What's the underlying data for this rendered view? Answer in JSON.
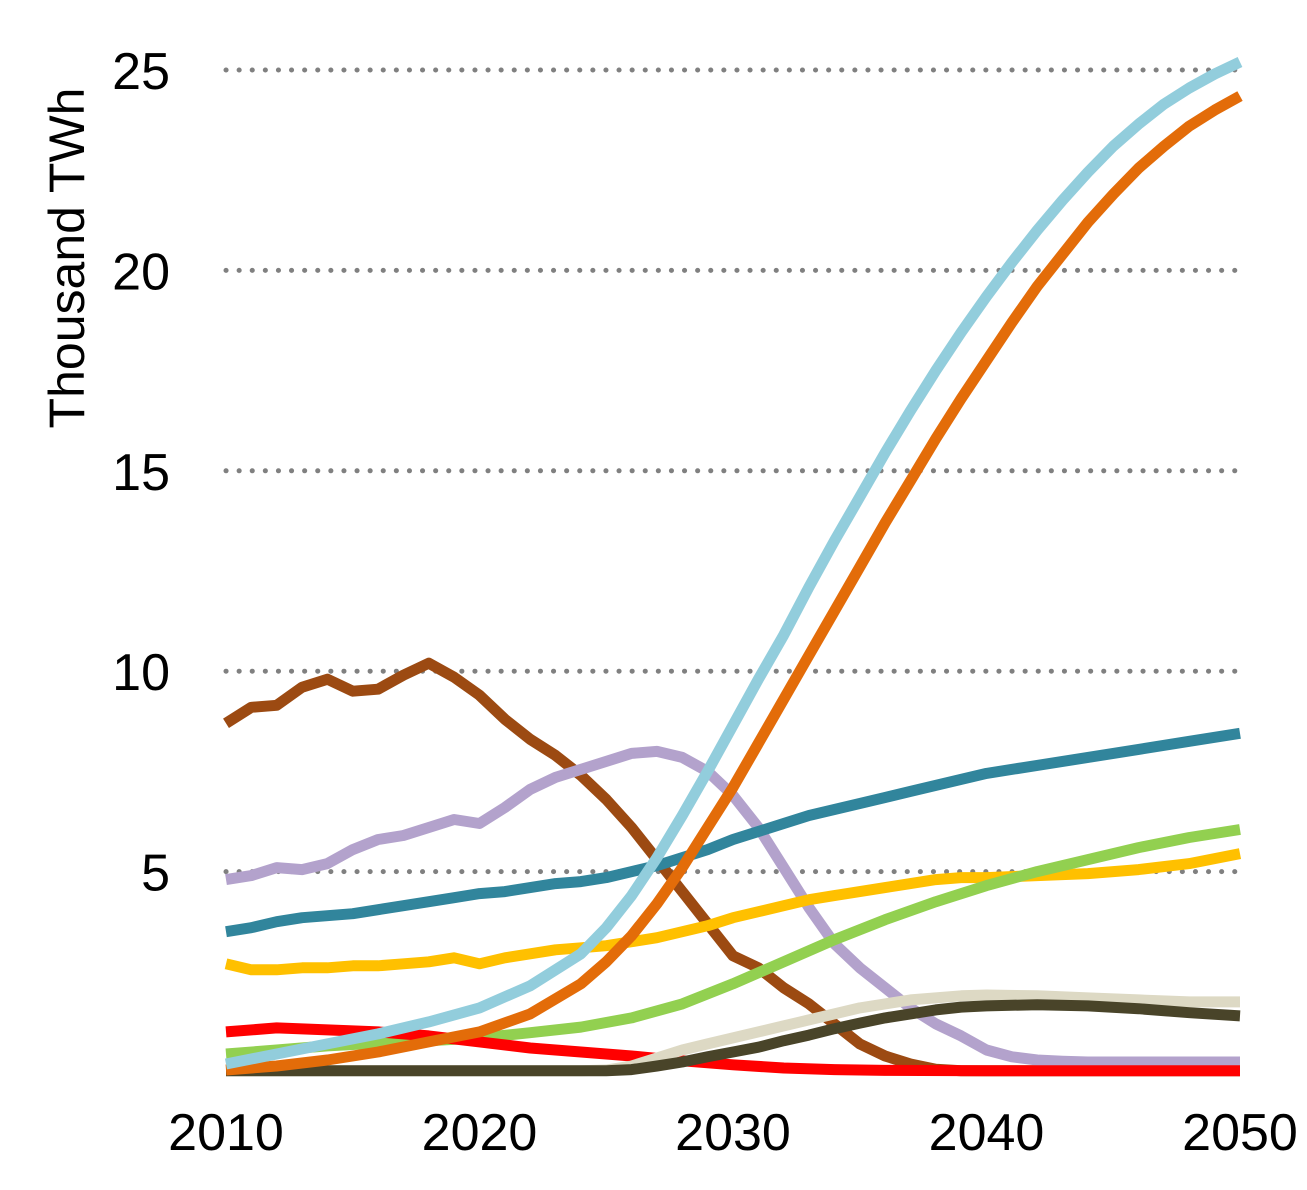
{
  "chart_data": {
    "type": "line",
    "title": "",
    "xlabel": "",
    "ylabel": "Thousand TWh",
    "xlim": [
      2010,
      2050
    ],
    "ylim": [
      0,
      25
    ],
    "xticks": [
      "2010",
      "2020",
      "2030",
      "2040",
      "2050"
    ],
    "yticks": [
      "5",
      "10",
      "15",
      "20",
      "25"
    ],
    "grid": "horizontal dotted",
    "legend": "none",
    "series": [
      {
        "color": "#9C4A12",
        "x": [
          2010,
          2011,
          2012,
          2013,
          2014,
          2015,
          2016,
          2017,
          2018,
          2019,
          2020,
          2021,
          2022,
          2023,
          2024,
          2025,
          2026,
          2027,
          2028,
          2029,
          2030,
          2031,
          2032,
          2033,
          2034,
          2035,
          2036,
          2037,
          2038,
          2039,
          2040,
          2045,
          2050
        ],
        "y": [
          8.7,
          9.1,
          9.15,
          9.6,
          9.8,
          9.5,
          9.55,
          9.9,
          10.2,
          9.85,
          9.4,
          8.8,
          8.3,
          7.9,
          7.4,
          6.8,
          6.1,
          5.3,
          4.5,
          3.7,
          2.9,
          2.6,
          2.1,
          1.7,
          1.2,
          0.7,
          0.4,
          0.2,
          0.07,
          0.03,
          0.03,
          0.03,
          0.03
        ]
      },
      {
        "color": "#B3A2CC",
        "x": [
          2010,
          2011,
          2012,
          2013,
          2014,
          2015,
          2016,
          2017,
          2018,
          2019,
          2020,
          2021,
          2022,
          2023,
          2024,
          2025,
          2026,
          2027,
          2028,
          2029,
          2030,
          2031,
          2032,
          2033,
          2034,
          2035,
          2036,
          2037,
          2038,
          2039,
          2040,
          2041,
          2042,
          2043,
          2044,
          2045,
          2050
        ],
        "y": [
          4.8,
          4.9,
          5.1,
          5.05,
          5.2,
          5.55,
          5.8,
          5.9,
          6.1,
          6.3,
          6.2,
          6.6,
          7.05,
          7.35,
          7.55,
          7.75,
          7.95,
          8.0,
          7.85,
          7.5,
          6.9,
          6.1,
          5.1,
          4.1,
          3.2,
          2.6,
          2.1,
          1.6,
          1.2,
          0.9,
          0.55,
          0.38,
          0.3,
          0.27,
          0.25,
          0.25,
          0.25
        ]
      },
      {
        "color": "#31859C",
        "x": [
          2010,
          2011,
          2012,
          2013,
          2014,
          2015,
          2016,
          2017,
          2018,
          2019,
          2020,
          2021,
          2022,
          2023,
          2024,
          2025,
          2026,
          2027,
          2028,
          2029,
          2030,
          2031,
          2032,
          2033,
          2034,
          2035,
          2036,
          2037,
          2038,
          2039,
          2040,
          2042,
          2044,
          2046,
          2048,
          2050
        ],
        "y": [
          3.5,
          3.6,
          3.75,
          3.85,
          3.9,
          3.95,
          4.05,
          4.15,
          4.25,
          4.35,
          4.45,
          4.5,
          4.6,
          4.7,
          4.75,
          4.85,
          5.0,
          5.15,
          5.35,
          5.55,
          5.8,
          6.0,
          6.2,
          6.4,
          6.55,
          6.7,
          6.85,
          7.0,
          7.15,
          7.3,
          7.45,
          7.65,
          7.85,
          8.05,
          8.25,
          8.45
        ]
      },
      {
        "color": "#FFC000",
        "x": [
          2010,
          2011,
          2012,
          2013,
          2014,
          2015,
          2016,
          2017,
          2018,
          2019,
          2020,
          2021,
          2022,
          2023,
          2024,
          2025,
          2026,
          2027,
          2028,
          2029,
          2030,
          2031,
          2032,
          2033,
          2034,
          2035,
          2036,
          2037,
          2038,
          2039,
          2040,
          2042,
          2044,
          2046,
          2048,
          2050
        ],
        "y": [
          2.7,
          2.55,
          2.55,
          2.6,
          2.6,
          2.65,
          2.65,
          2.7,
          2.75,
          2.85,
          2.7,
          2.85,
          2.95,
          3.05,
          3.1,
          3.15,
          3.25,
          3.35,
          3.5,
          3.65,
          3.85,
          4.0,
          4.15,
          4.3,
          4.4,
          4.5,
          4.6,
          4.7,
          4.8,
          4.85,
          4.85,
          4.9,
          4.95,
          5.05,
          5.2,
          5.45
        ]
      },
      {
        "color": "#92D050",
        "x": [
          2010,
          2012,
          2014,
          2016,
          2018,
          2020,
          2022,
          2024,
          2026,
          2028,
          2030,
          2032,
          2034,
          2036,
          2038,
          2040,
          2042,
          2044,
          2046,
          2048,
          2050
        ],
        "y": [
          0.45,
          0.55,
          0.65,
          0.72,
          0.78,
          0.85,
          0.98,
          1.12,
          1.35,
          1.7,
          2.2,
          2.75,
          3.3,
          3.8,
          4.25,
          4.65,
          5.0,
          5.3,
          5.6,
          5.85,
          6.05
        ]
      },
      {
        "color": "#FF0000",
        "x": [
          2010,
          2012,
          2014,
          2016,
          2018,
          2020,
          2022,
          2024,
          2026,
          2028,
          2030,
          2032,
          2034,
          2036,
          2040,
          2050
        ],
        "y": [
          1.0,
          1.1,
          1.05,
          1.0,
          0.9,
          0.75,
          0.6,
          0.5,
          0.4,
          0.28,
          0.18,
          0.1,
          0.06,
          0.04,
          0.03,
          0.03
        ]
      },
      {
        "color": "#DDD9C4",
        "x": [
          2010,
          2024,
          2025,
          2026,
          2027,
          2028,
          2029,
          2030,
          2031,
          2032,
          2033,
          2034,
          2035,
          2036,
          2037,
          2038,
          2039,
          2040,
          2042,
          2044,
          2046,
          2048,
          2050
        ],
        "y": [
          0.03,
          0.03,
          0.05,
          0.15,
          0.35,
          0.55,
          0.7,
          0.85,
          1.0,
          1.15,
          1.3,
          1.45,
          1.6,
          1.7,
          1.8,
          1.85,
          1.9,
          1.92,
          1.9,
          1.85,
          1.8,
          1.75,
          1.75
        ]
      },
      {
        "color": "#494429",
        "x": [
          2010,
          2025,
          2026,
          2027,
          2028,
          2029,
          2030,
          2031,
          2032,
          2033,
          2034,
          2035,
          2036,
          2037,
          2038,
          2039,
          2040,
          2042,
          2044,
          2046,
          2048,
          2050
        ],
        "y": [
          0.03,
          0.03,
          0.06,
          0.15,
          0.25,
          0.38,
          0.5,
          0.62,
          0.78,
          0.92,
          1.08,
          1.22,
          1.35,
          1.45,
          1.55,
          1.62,
          1.65,
          1.68,
          1.65,
          1.58,
          1.48,
          1.4
        ]
      },
      {
        "color": "#E36C09",
        "x": [
          2010,
          2012,
          2014,
          2016,
          2018,
          2020,
          2022,
          2024,
          2025,
          2026,
          2027,
          2028,
          2029,
          2030,
          2031,
          2032,
          2033,
          2034,
          2035,
          2036,
          2037,
          2038,
          2039,
          2040,
          2041,
          2042,
          2043,
          2044,
          2045,
          2046,
          2047,
          2048,
          2049,
          2050
        ],
        "y": [
          0.05,
          0.15,
          0.3,
          0.5,
          0.75,
          1.0,
          1.45,
          2.2,
          2.75,
          3.4,
          4.2,
          5.1,
          6.1,
          7.1,
          8.2,
          9.3,
          10.4,
          11.5,
          12.6,
          13.7,
          14.75,
          15.8,
          16.8,
          17.75,
          18.7,
          19.6,
          20.4,
          21.2,
          21.9,
          22.55,
          23.1,
          23.6,
          24.0,
          24.35
        ]
      },
      {
        "color": "#92CDDC",
        "x": [
          2010,
          2012,
          2014,
          2016,
          2018,
          2020,
          2022,
          2024,
          2025,
          2026,
          2027,
          2028,
          2029,
          2030,
          2031,
          2032,
          2033,
          2034,
          2035,
          2036,
          2037,
          2038,
          2039,
          2040,
          2041,
          2042,
          2043,
          2044,
          2045,
          2046,
          2047,
          2048,
          2049,
          2050
        ],
        "y": [
          0.2,
          0.45,
          0.7,
          0.95,
          1.25,
          1.6,
          2.15,
          2.95,
          3.6,
          4.4,
          5.35,
          6.4,
          7.5,
          8.65,
          9.8,
          10.9,
          12.1,
          13.25,
          14.35,
          15.45,
          16.5,
          17.5,
          18.45,
          19.35,
          20.2,
          21.0,
          21.75,
          22.45,
          23.1,
          23.65,
          24.15,
          24.55,
          24.9,
          25.2
        ]
      }
    ]
  }
}
